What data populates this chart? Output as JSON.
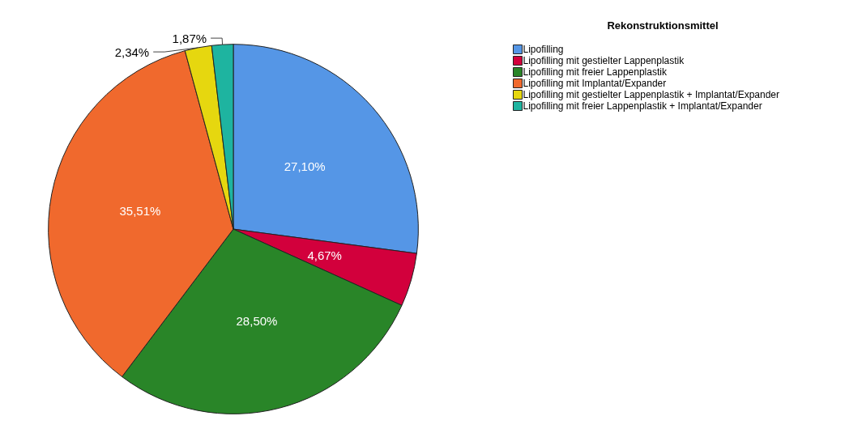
{
  "chart_data": {
    "type": "pie",
    "legend_title": "Rekonstruktionsmittel",
    "categories": [
      "Lipofilling",
      "Lipofilling mit gestielter Lappenplastik",
      "Lipofilling mit freier Lappenplastik",
      "Lipofilling mit Implantat/Expander",
      "Lipofilling mit gestielter Lappenplastik + Implantat/Expander",
      "Lipofilling mit freier Lappenplastik + Implantat/Expander"
    ],
    "values": [
      27.1,
      4.67,
      28.5,
      35.51,
      2.34,
      1.87
    ],
    "colors": [
      "#5596e6",
      "#d2003c",
      "#298528",
      "#f0692d",
      "#e6d70f",
      "#1eb4a0"
    ],
    "value_labels": [
      "27,10%",
      "4,67%",
      "28,50%",
      "35,51%",
      "2,34%",
      "1,87%"
    ],
    "legend": "top right"
  }
}
